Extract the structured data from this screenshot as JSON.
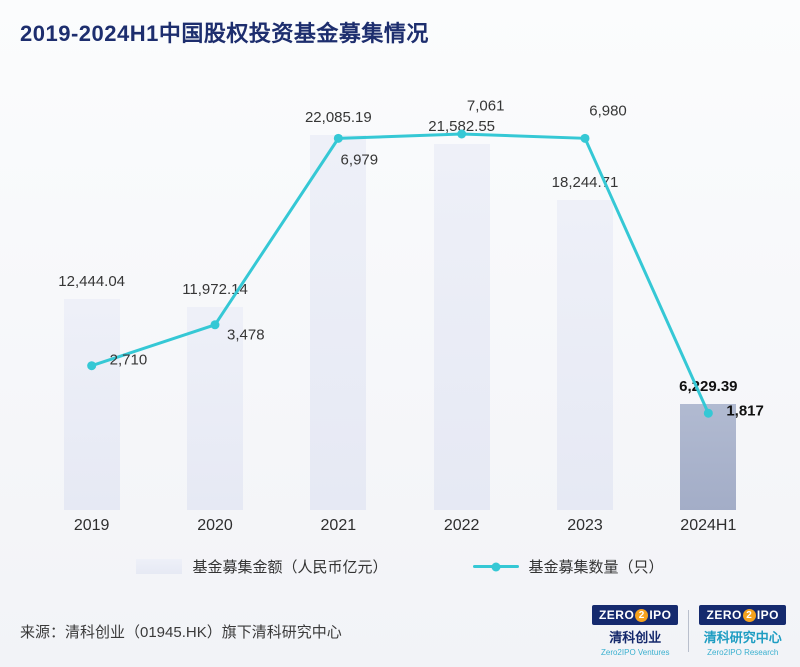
{
  "title": "2019-2024H1中国股权投资基金募集情况",
  "chart_data": {
    "type": "bar",
    "subtype": "bar-line-combo",
    "categories": [
      "2019",
      "2020",
      "2021",
      "2022",
      "2023",
      "2024H1"
    ],
    "series": [
      {
        "name": "基金募集金额（人民币亿元）",
        "type": "bar",
        "values": [
          12444.04,
          11972.14,
          22085.19,
          21582.55,
          18244.71,
          6229.39
        ],
        "labels": [
          "12,444.04",
          "11,972.14",
          "22,085.19",
          "21,582.55",
          "18,244.71",
          "6,229.39"
        ]
      },
      {
        "name": "基金募集数量（只）",
        "type": "line",
        "values": [
          2710,
          3478,
          6979,
          7061,
          6980,
          1817
        ],
        "labels": [
          "2,710",
          "3,478",
          "6,979",
          "7,061",
          "6,980",
          "1,817"
        ]
      }
    ],
    "highlight_index": 5,
    "highlight_category": "2024H1",
    "colors": {
      "bar": "#e6e9f4",
      "bar_top": "#eef0f8",
      "bar_highlight": "#a3adc7",
      "bar_highlight_top": "#b1bad1",
      "line": "#35c8d5",
      "title": "#1d2e6e"
    },
    "legend_position": "bottom",
    "grid": false,
    "ylim": [
      0,
      23000
    ]
  },
  "legend": {
    "bar_label": "基金募集金额（人民币亿元）",
    "line_label": "基金募集数量（只）"
  },
  "footer": {
    "source": "来源：清科创业（01945.HK）旗下清科研究中心"
  },
  "logos": [
    {
      "badge": {
        "zero": "ZERO",
        "two": "2",
        "ipo": "IPO"
      },
      "name": "清科创业",
      "sub": "Zero2IPO Ventures"
    },
    {
      "badge": {
        "zero": "ZERO",
        "two": "2",
        "ipo": "IPO"
      },
      "name": "清科研究中心",
      "sub": "Zero2IPO Research"
    }
  ]
}
